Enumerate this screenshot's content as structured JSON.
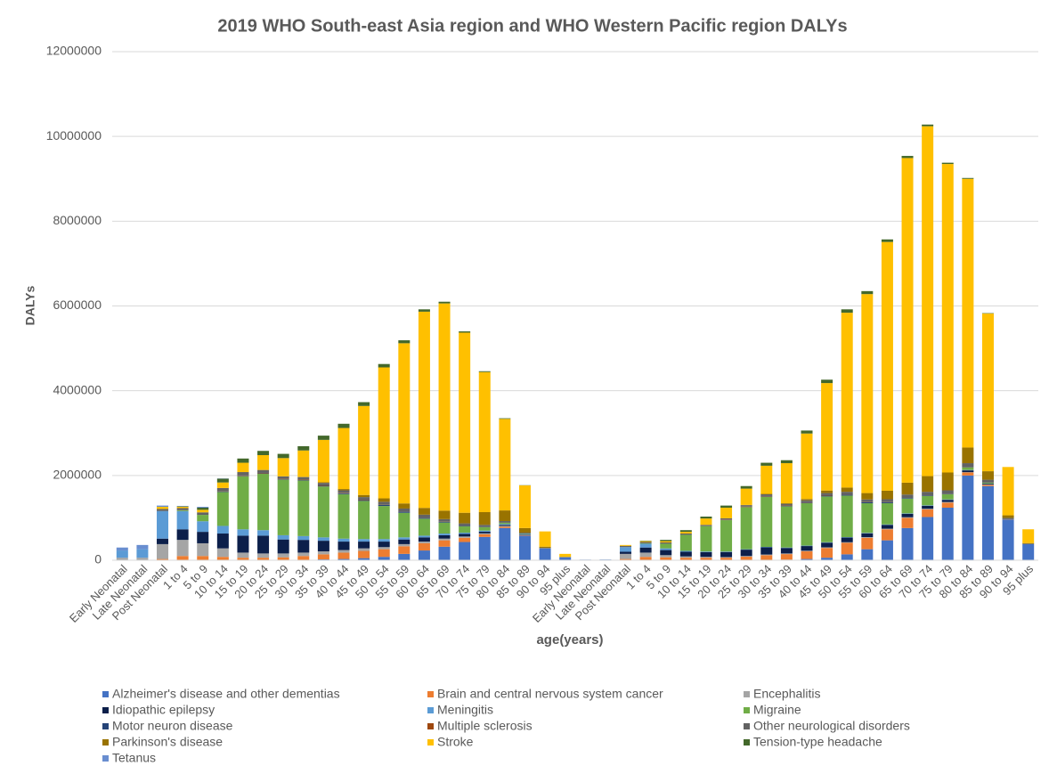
{
  "chart_data": {
    "type": "stacked_bar",
    "title": "2019 WHO South-east Asia region and WHO Western Pacific region DALYs",
    "x_label": "age(years)",
    "y_label": "DALYs",
    "categories": [
      "Early Neonatal",
      "Late Neonatal",
      "Post Neonatal",
      "1 to 4",
      "5 to 9",
      "10 to 14",
      "15 to 19",
      "20 to 24",
      "25 to 29",
      "30 to 34",
      "35 to 39",
      "40 to 44",
      "45 to 49",
      "50 to 54",
      "55 to 59",
      "60 to 64",
      "65 to 69",
      "70 to 74",
      "75 to 79",
      "80 to 84",
      "85 to 89",
      "90 to 94",
      "95 plus",
      "Early Neonatal",
      "Late Neonatal",
      "Post Neonatal",
      "1 to 4",
      "5 to 9",
      "10 to 14",
      "15 to 19",
      "20 to 24",
      "25 to 29",
      "30 to 34",
      "35 to 39",
      "40 to 44",
      "45 to 49",
      "50 to 54",
      "55 to 59",
      "60 to 64",
      "65 to 69",
      "70 to 74",
      "75 to 79",
      "80 to 84",
      "85 to 89",
      "90 to 94",
      "95 plus"
    ],
    "ylim": [
      0,
      12000000
    ],
    "yticks": [
      0,
      2000000,
      4000000,
      6000000,
      8000000,
      10000000,
      12000000
    ],
    "grid": true,
    "legend": "bottom",
    "series": [
      {
        "name": "Alzheimer's disease and other dementias",
        "color": "#4472c4",
        "values": [
          0,
          0,
          0,
          0,
          0,
          0,
          0,
          0,
          0,
          10000,
          20000,
          30000,
          50000,
          80000,
          150000,
          230000,
          320000,
          430000,
          550000,
          760000,
          580000,
          280000,
          70000,
          0,
          0,
          0,
          0,
          0,
          0,
          0,
          0,
          5000,
          10000,
          15000,
          30000,
          60000,
          140000,
          260000,
          470000,
          760000,
          1020000,
          1240000,
          2000000,
          1750000,
          960000,
          380000
        ]
      },
      {
        "name": "Brain and central nervous system cancer",
        "color": "#ed7d31",
        "values": [
          0,
          0,
          30000,
          100000,
          100000,
          80000,
          60000,
          60000,
          70000,
          90000,
          120000,
          150000,
          170000,
          180000,
          180000,
          170000,
          150000,
          100000,
          60000,
          30000,
          10000,
          0,
          0,
          0,
          0,
          30000,
          80000,
          70000,
          60000,
          60000,
          60000,
          80000,
          110000,
          130000,
          180000,
          230000,
          270000,
          270000,
          260000,
          240000,
          180000,
          120000,
          70000,
          30000,
          5000,
          0
        ]
      },
      {
        "name": "Encephalitis",
        "color": "#a5a5a5",
        "values": [
          60000,
          60000,
          350000,
          380000,
          300000,
          200000,
          120000,
          100000,
          90000,
          80000,
          70000,
          60000,
          60000,
          50000,
          50000,
          40000,
          40000,
          30000,
          25000,
          20000,
          10000,
          0,
          0,
          5000,
          5000,
          120000,
          100000,
          50000,
          30000,
          20000,
          15000,
          15000,
          15000,
          15000,
          15000,
          15000,
          15000,
          15000,
          15000,
          15000,
          15000,
          15000,
          10000,
          5000,
          0,
          0
        ]
      },
      {
        "name": "Idiopathic epilepsy",
        "color": "#0c1f4a",
        "values": [
          0,
          0,
          130000,
          250000,
          270000,
          350000,
          400000,
          420000,
          330000,
          300000,
          250000,
          200000,
          160000,
          130000,
          110000,
          100000,
          80000,
          60000,
          40000,
          25000,
          10000,
          0,
          0,
          0,
          0,
          50000,
          120000,
          120000,
          110000,
          110000,
          120000,
          150000,
          170000,
          130000,
          110000,
          110000,
          110000,
          90000,
          90000,
          80000,
          70000,
          50000,
          40000,
          20000,
          5000,
          0
        ]
      },
      {
        "name": "Meningitis",
        "color": "#5b9bd5",
        "values": [
          170000,
          200000,
          650000,
          430000,
          250000,
          180000,
          150000,
          130000,
          100000,
          90000,
          80000,
          70000,
          60000,
          60000,
          50000,
          40000,
          40000,
          30000,
          25000,
          20000,
          10000,
          0,
          0,
          5000,
          10000,
          110000,
          90000,
          40000,
          20000,
          15000,
          10000,
          10000,
          10000,
          10000,
          10000,
          10000,
          10000,
          10000,
          10000,
          10000,
          10000,
          10000,
          10000,
          5000,
          0,
          0
        ]
      },
      {
        "name": "Migraine",
        "color": "#70ad47",
        "values": [
          0,
          0,
          0,
          20000,
          150000,
          800000,
          1250000,
          1330000,
          1310000,
          1310000,
          1200000,
          1050000,
          900000,
          780000,
          580000,
          400000,
          260000,
          150000,
          80000,
          30000,
          10000,
          0,
          0,
          0,
          0,
          0,
          10000,
          110000,
          380000,
          600000,
          740000,
          990000,
          1180000,
          970000,
          1000000,
          1080000,
          980000,
          700000,
          500000,
          350000,
          220000,
          120000,
          60000,
          20000,
          0,
          0
        ]
      },
      {
        "name": "Motor neuron disease",
        "color": "#264478",
        "values": [
          0,
          0,
          0,
          0,
          0,
          10000,
          10000,
          10000,
          10000,
          10000,
          15000,
          20000,
          20000,
          25000,
          25000,
          20000,
          15000,
          10000,
          5000,
          0,
          0,
          0,
          0,
          0,
          0,
          0,
          0,
          0,
          0,
          0,
          5000,
          5000,
          10000,
          10000,
          15000,
          20000,
          25000,
          25000,
          20000,
          15000,
          10000,
          5000,
          0,
          0,
          0,
          0
        ]
      },
      {
        "name": "Multiple sclerosis",
        "color": "#9e480e",
        "values": [
          0,
          0,
          0,
          0,
          0,
          5000,
          10000,
          10000,
          10000,
          10000,
          10000,
          10000,
          10000,
          5000,
          5000,
          5000,
          5000,
          0,
          0,
          0,
          0,
          0,
          0,
          0,
          0,
          0,
          0,
          0,
          0,
          0,
          10000,
          10000,
          10000,
          10000,
          10000,
          10000,
          5000,
          5000,
          5000,
          0,
          0,
          0,
          0,
          0,
          0,
          0
        ]
      },
      {
        "name": "Other neurological disorders",
        "color": "#636363",
        "values": [
          0,
          0,
          50000,
          50000,
          60000,
          80000,
          80000,
          70000,
          60000,
          60000,
          60000,
          60000,
          60000,
          70000,
          70000,
          70000,
          60000,
          60000,
          50000,
          40000,
          20000,
          10000,
          5000,
          0,
          0,
          30000,
          30000,
          30000,
          30000,
          30000,
          30000,
          35000,
          40000,
          40000,
          45000,
          50000,
          60000,
          60000,
          70000,
          80000,
          90000,
          90000,
          100000,
          70000,
          30000,
          10000
        ]
      },
      {
        "name": "Parkinson's disease",
        "color": "#997300",
        "values": [
          0,
          0,
          0,
          0,
          0,
          0,
          0,
          0,
          0,
          10000,
          15000,
          30000,
          50000,
          80000,
          120000,
          160000,
          200000,
          250000,
          300000,
          250000,
          110000,
          30000,
          5000,
          0,
          0,
          0,
          0,
          0,
          0,
          0,
          0,
          5000,
          10000,
          15000,
          30000,
          60000,
          100000,
          150000,
          200000,
          280000,
          370000,
          420000,
          370000,
          200000,
          60000,
          15000
        ]
      },
      {
        "name": "Stroke",
        "color": "#ffc000",
        "values": [
          0,
          0,
          50000,
          30000,
          60000,
          130000,
          220000,
          350000,
          430000,
          620000,
          1000000,
          1440000,
          2100000,
          3090000,
          3780000,
          4630000,
          4890000,
          4250000,
          3305000,
          2160000,
          1005000,
          360000,
          70000,
          0,
          0,
          20000,
          20000,
          30000,
          40000,
          150000,
          250000,
          385000,
          665000,
          945000,
          1545000,
          2535000,
          4125000,
          4695000,
          5870000,
          7660000,
          8255000,
          7280000,
          6340000,
          3720000,
          1140000,
          325000
        ]
      },
      {
        "name": "Tension-type headache",
        "color": "#43682b",
        "values": [
          0,
          0,
          0,
          10000,
          50000,
          90000,
          100000,
          100000,
          100000,
          100000,
          100000,
          100000,
          90000,
          80000,
          70000,
          55000,
          40000,
          30000,
          20000,
          15000,
          5000,
          0,
          0,
          0,
          0,
          0,
          10000,
          30000,
          40000,
          45000,
          50000,
          60000,
          70000,
          70000,
          70000,
          80000,
          80000,
          70000,
          60000,
          50000,
          40000,
          30000,
          20000,
          10000,
          0,
          0
        ]
      },
      {
        "name": "Tetanus",
        "color": "#698ed0",
        "values": [
          70000,
          100000,
          30000,
          10000,
          20000,
          5000,
          0,
          0,
          0,
          0,
          0,
          0,
          0,
          0,
          0,
          0,
          0,
          0,
          0,
          0,
          0,
          0,
          0,
          5000,
          5000,
          0,
          0,
          0,
          0,
          0,
          0,
          0,
          0,
          0,
          0,
          0,
          0,
          0,
          0,
          0,
          0,
          0,
          0,
          0,
          0,
          0
        ]
      }
    ]
  }
}
